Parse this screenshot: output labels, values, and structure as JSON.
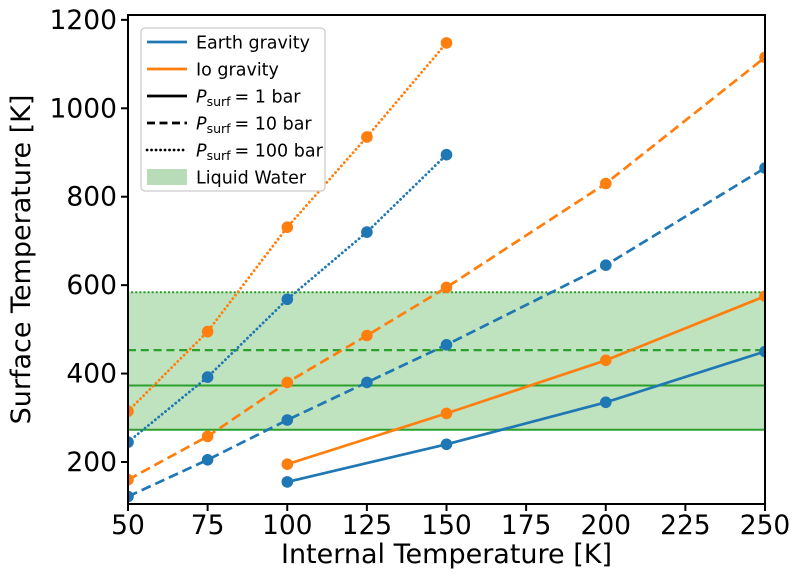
{
  "chart_data": {
    "type": "line",
    "title": "",
    "xlabel": "Internal Temperature [K]",
    "ylabel": "Surface Temperature [K]",
    "xlim": [
      50,
      250
    ],
    "ylim": [
      105,
      1211
    ],
    "xticks": [
      50,
      75,
      100,
      125,
      150,
      175,
      200,
      225,
      250
    ],
    "yticks": [
      200,
      400,
      600,
      800,
      1000,
      1200
    ],
    "grid": false,
    "legend_position": "upper-left",
    "colors": {
      "earth": "#1f77b4",
      "io": "#ff7f0e",
      "water_line": "#2ca02c",
      "water_fill": "#2ca02c",
      "black": "#000000",
      "legend_patch": "#b7dcb7",
      "legend_border": "#cccccc"
    },
    "series": [
      {
        "name": "earth-1bar",
        "label": "Earth gravity, Psurf = 1 bar",
        "gravity": "earth",
        "pressure_bar": 1,
        "style": "solid",
        "color": "#1f77b4",
        "x": [
          100,
          150,
          200,
          250
        ],
        "y": [
          155,
          240,
          335,
          450
        ]
      },
      {
        "name": "io-1bar",
        "label": "Io gravity, Psurf = 1 bar",
        "gravity": "io",
        "pressure_bar": 1,
        "style": "solid",
        "color": "#ff7f0e",
        "x": [
          100,
          150,
          200,
          250
        ],
        "y": [
          195,
          310,
          430,
          575
        ]
      },
      {
        "name": "earth-10bar",
        "label": "Earth gravity, Psurf = 10 bar",
        "gravity": "earth",
        "pressure_bar": 10,
        "style": "dashed",
        "color": "#1f77b4",
        "x": [
          50,
          75,
          100,
          125,
          150,
          200,
          250
        ],
        "y": [
          122,
          205,
          295,
          380,
          465,
          645,
          865
        ]
      },
      {
        "name": "io-10bar",
        "label": "Io gravity, Psurf = 10 bar",
        "gravity": "io",
        "pressure_bar": 10,
        "style": "dashed",
        "color": "#ff7f0e",
        "x": [
          50,
          75,
          100,
          125,
          150,
          200,
          250
        ],
        "y": [
          160,
          258,
          380,
          486,
          595,
          830,
          1115
        ]
      },
      {
        "name": "earth-100bar",
        "label": "Earth gravity, Psurf = 100 bar",
        "gravity": "earth",
        "pressure_bar": 100,
        "style": "dotted",
        "color": "#1f77b4",
        "x": [
          50,
          75,
          100,
          125,
          150
        ],
        "y": [
          245,
          392,
          568,
          720,
          895
        ]
      },
      {
        "name": "io-100bar",
        "label": "Io gravity, Psurf = 100 bar",
        "gravity": "io",
        "pressure_bar": 100,
        "style": "dotted",
        "color": "#ff7f0e",
        "x": [
          50,
          75,
          100,
          125,
          150
        ],
        "y": [
          315,
          495,
          731,
          935,
          1148
        ]
      }
    ],
    "liquid_water": {
      "label": "Liquid Water",
      "band": [
        273,
        584
      ],
      "fill_opacity": 0.3,
      "lines": [
        {
          "name": "freeze",
          "value": 273,
          "style": "solid"
        },
        {
          "name": "boil-1bar",
          "value": 373,
          "style": "solid"
        },
        {
          "name": "boil-10bar",
          "value": 453,
          "style": "dashed"
        },
        {
          "name": "boil-100bar",
          "value": 584,
          "style": "dotted"
        }
      ]
    },
    "legend": [
      {
        "kind": "line",
        "style": "solid",
        "color": "#1f77b4",
        "label": "Earth gravity"
      },
      {
        "kind": "line",
        "style": "solid",
        "color": "#ff7f0e",
        "label": "Io gravity"
      },
      {
        "kind": "line",
        "style": "solid",
        "color": "#000000",
        "label_math": {
          "pre": "P",
          "sub": "surf",
          "post": "= 1 bar"
        }
      },
      {
        "kind": "line",
        "style": "dashed",
        "color": "#000000",
        "label_math": {
          "pre": "P",
          "sub": "surf",
          "post": "= 10 bar"
        }
      },
      {
        "kind": "line",
        "style": "dotted",
        "color": "#000000",
        "label_math": {
          "pre": "P",
          "sub": "surf",
          "post": "= 100 bar"
        }
      },
      {
        "kind": "patch",
        "style": "patch",
        "color": "#b7dcb7",
        "label": "Liquid Water"
      }
    ]
  }
}
